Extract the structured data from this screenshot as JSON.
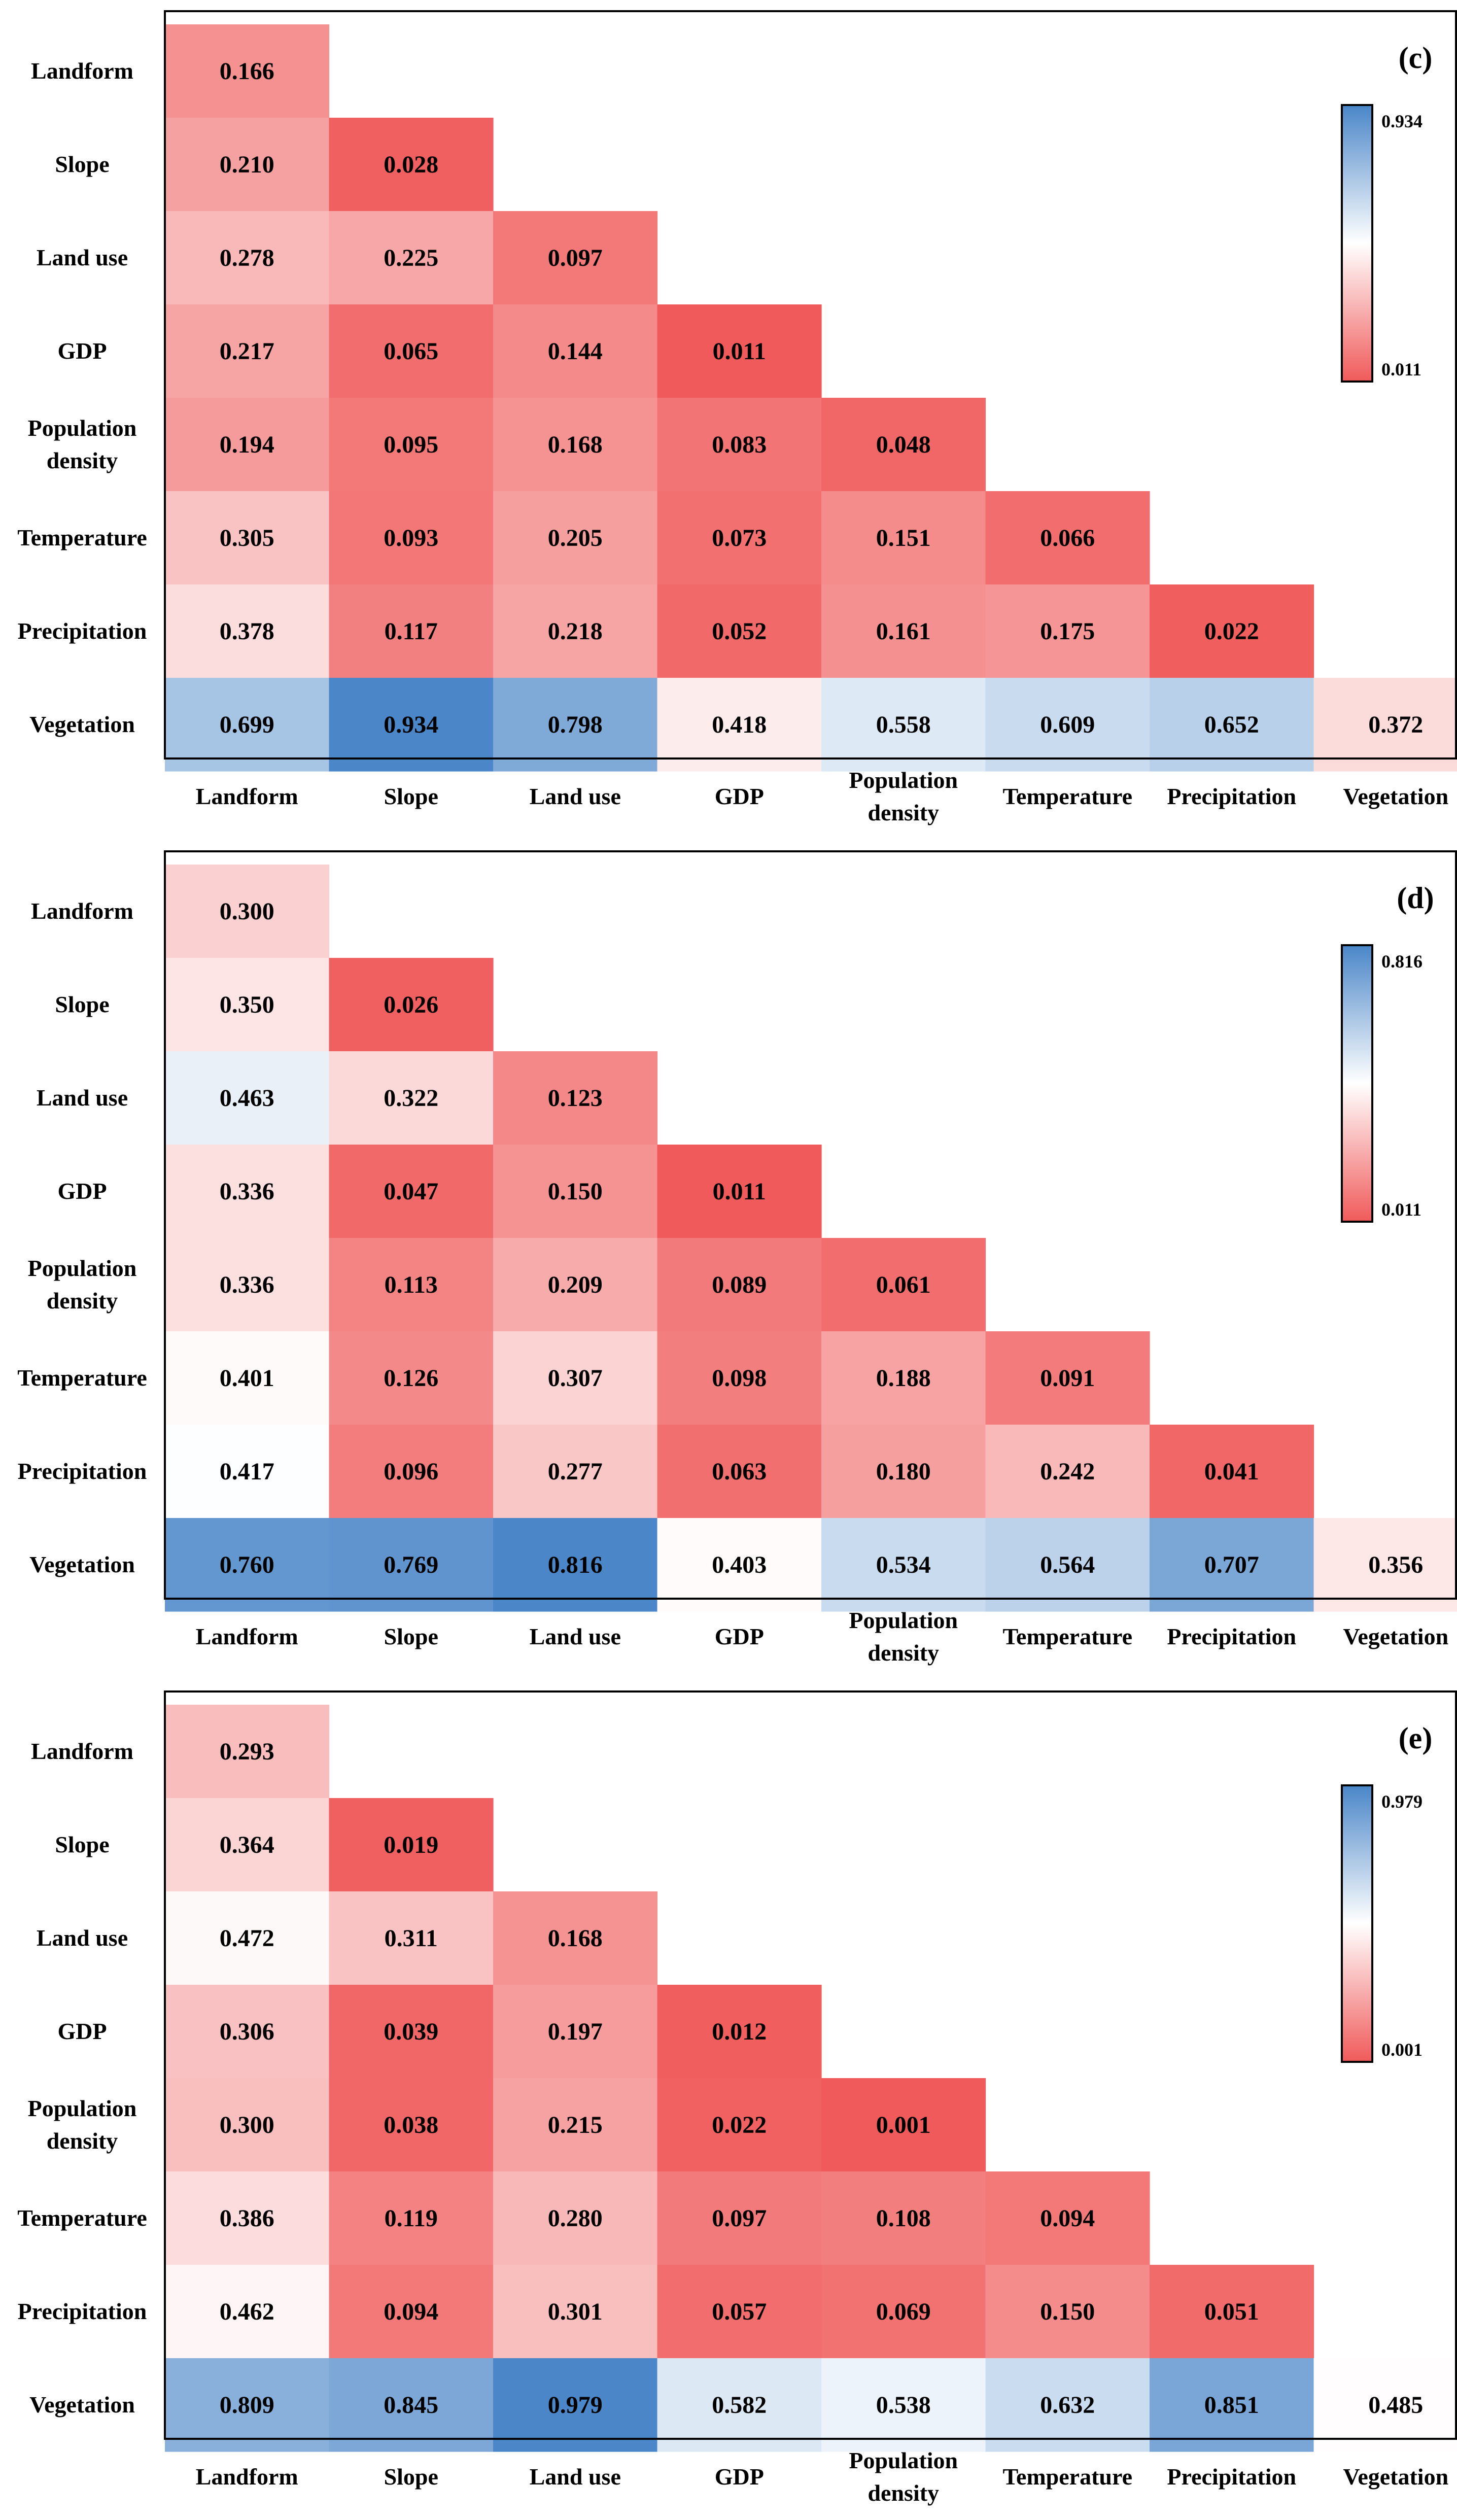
{
  "chart_data": [
    {
      "type": "heatmap",
      "panel_label": "(c)",
      "row_labels": [
        "Landform",
        "Slope",
        "Land use",
        "GDP",
        [
          "Population",
          "density"
        ],
        "Temperature",
        "Precipitation",
        "Vegetation"
      ],
      "col_labels": [
        "Landform",
        "Slope",
        "Land use",
        "GDP",
        [
          "Population",
          "density"
        ],
        "Temperature",
        "Precipitation",
        "Vegetation"
      ],
      "values": [
        [
          "0.166"
        ],
        [
          "0.210",
          "0.028"
        ],
        [
          "0.278",
          "0.225",
          "0.097"
        ],
        [
          "0.217",
          "0.065",
          "0.144",
          "0.011"
        ],
        [
          "0.194",
          "0.095",
          "0.168",
          "0.083",
          "0.048"
        ],
        [
          "0.305",
          "0.093",
          "0.205",
          "0.073",
          "0.151",
          "0.066"
        ],
        [
          "0.378",
          "0.117",
          "0.218",
          "0.052",
          "0.161",
          "0.175",
          "0.022"
        ],
        [
          "0.699",
          "0.934",
          "0.798",
          "0.418",
          "0.558",
          "0.609",
          "0.652",
          "0.372"
        ]
      ],
      "colorbar": {
        "min": 0.011,
        "max": 0.934,
        "min_label": "0.011",
        "max_label": "0.934",
        "low_color": "#f05a5a",
        "mid_color": "#ffffff",
        "high_color": "#4a86c8"
      }
    },
    {
      "type": "heatmap",
      "panel_label": "(d)",
      "row_labels": [
        "Landform",
        "Slope",
        "Land use",
        "GDP",
        [
          "Population",
          "density"
        ],
        "Temperature",
        "Precipitation",
        "Vegetation"
      ],
      "col_labels": [
        "Landform",
        "Slope",
        "Land use",
        "GDP",
        [
          "Population",
          "density"
        ],
        "Temperature",
        "Precipitation",
        "Vegetation"
      ],
      "values": [
        [
          "0.300"
        ],
        [
          "0.350",
          "0.026"
        ],
        [
          "0.463",
          "0.322",
          "0.123"
        ],
        [
          "0.336",
          "0.047",
          "0.150",
          "0.011"
        ],
        [
          "0.336",
          "0.113",
          "0.209",
          "0.089",
          "0.061"
        ],
        [
          "0.401",
          "0.126",
          "0.307",
          "0.098",
          "0.188",
          "0.091"
        ],
        [
          "0.417",
          "0.096",
          "0.277",
          "0.063",
          "0.180",
          "0.242",
          "0.041"
        ],
        [
          "0.760",
          "0.769",
          "0.816",
          "0.403",
          "0.534",
          "0.564",
          "0.707",
          "0.356"
        ]
      ],
      "colorbar": {
        "min": 0.011,
        "max": 0.816,
        "min_label": "0.011",
        "max_label": "0.816",
        "low_color": "#f05a5a",
        "mid_color": "#ffffff",
        "high_color": "#4a86c8"
      }
    },
    {
      "type": "heatmap",
      "panel_label": "(e)",
      "row_labels": [
        "Landform",
        "Slope",
        "Land use",
        "GDP",
        [
          "Population",
          "density"
        ],
        "Temperature",
        "Precipitation",
        "Vegetation"
      ],
      "col_labels": [
        "Landform",
        "Slope",
        "Land use",
        "GDP",
        [
          "Population",
          "density"
        ],
        "Temperature",
        "Precipitation",
        "Vegetation"
      ],
      "values": [
        [
          "0.293"
        ],
        [
          "0.364",
          "0.019"
        ],
        [
          "0.472",
          "0.311",
          "0.168"
        ],
        [
          "0.306",
          "0.039",
          "0.197",
          "0.012"
        ],
        [
          "0.300",
          "0.038",
          "0.215",
          "0.022",
          "0.001"
        ],
        [
          "0.386",
          "0.119",
          "0.280",
          "0.097",
          "0.108",
          "0.094"
        ],
        [
          "0.462",
          "0.094",
          "0.301",
          "0.057",
          "0.069",
          "0.150",
          "0.051"
        ],
        [
          "0.809",
          "0.845",
          "0.979",
          "0.582",
          "0.538",
          "0.632",
          "0.851",
          "0.485"
        ]
      ],
      "colorbar": {
        "min": 0.001,
        "max": 0.979,
        "min_label": "0.001",
        "max_label": "0.979",
        "low_color": "#f05a5a",
        "mid_color": "#ffffff",
        "high_color": "#4a86c8"
      }
    }
  ]
}
